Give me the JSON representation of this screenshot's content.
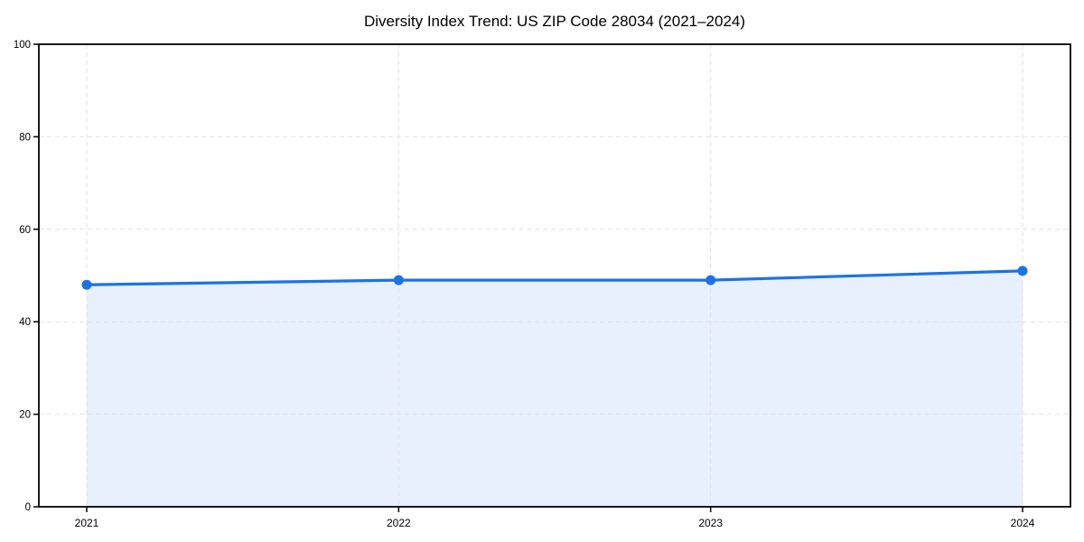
{
  "chart_data": {
    "type": "area",
    "title": "Diversity Index Trend: US ZIP Code 28034 (2021–2024)",
    "xlabel": "",
    "ylabel": "",
    "categories": [
      "2021",
      "2022",
      "2023",
      "2024"
    ],
    "series": [
      {
        "name": "Diversity Index",
        "values": [
          48,
          49,
          49,
          51
        ]
      }
    ],
    "ylim": [
      0,
      100
    ],
    "yticks": [
      0,
      20,
      40,
      60,
      80,
      100
    ],
    "grid": "dashed-both-axes",
    "legend": "none",
    "colors": {
      "line": "#1a73e8",
      "marker": "#1a73e8",
      "fill": "#e8f0fe",
      "grid": "#e0e0e0",
      "spine": "#000000",
      "tick_text": "#000000",
      "background": "#ffffff"
    }
  }
}
